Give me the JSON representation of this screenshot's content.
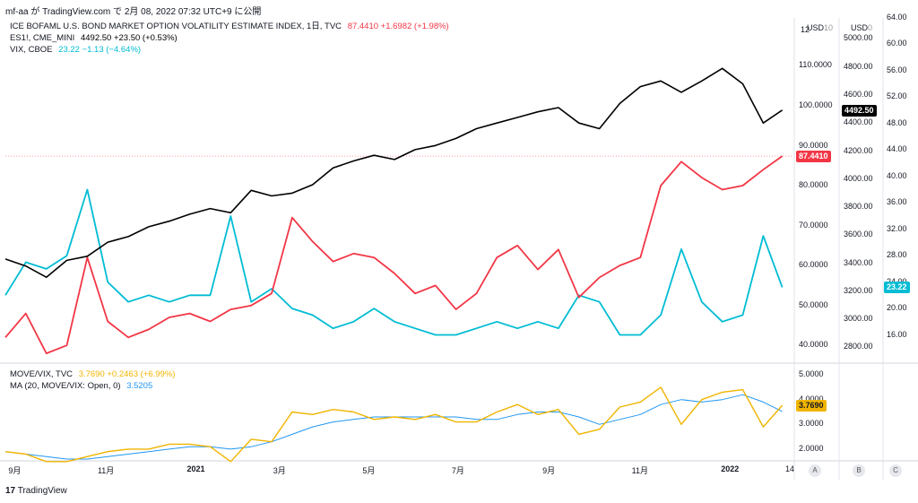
{
  "header": {
    "text": "mf-aa が TradingView.com で 2月 08, 2022 07:32 UTC+9 に公開"
  },
  "logo": {
    "text": "TradingView",
    "icon": "tradingview-logo-icon"
  },
  "main_legend": [
    {
      "name": "ICE BOFAML U.S. BOND MARKET OPTION VOLATILITY ESTIMATE INDEX, 1日, TVC",
      "values": "87.4410 +1.6982 (+1.98%)",
      "color": "#f23645"
    },
    {
      "name": "ES1!, CME_MINI",
      "values": "4492.50 +23.50 (+0.53%)",
      "color": "#000000"
    },
    {
      "name": "VIX, CBOE",
      "values": "23.22 −1.13 (−4.64%)",
      "color": "#00bcd4"
    }
  ],
  "sub_legend": [
    {
      "name": "MOVE/VIX, TVC",
      "values": "3.7690 +0.2463 (+6.99%)",
      "color": "#f0b400"
    },
    {
      "name": "MA (20, MOVE/VIX: Open, 0)",
      "values": "3.5205",
      "color": "#2196f3"
    }
  ],
  "axis_currency": [
    "USD",
    "USD"
  ],
  "axis_partial": [
    "10",
    "0"
  ],
  "x_ticks": [
    "9月",
    "11月",
    "2021",
    "3月",
    "5月",
    "7月",
    "9月",
    "11月",
    "2022",
    "14"
  ],
  "axis_buttons": [
    "A",
    "B",
    "C"
  ],
  "move_axis_ticks": [
    "12",
    "110.0000",
    "100.0000",
    "90.0000",
    "80.0000",
    "70.0000",
    "60.0000",
    "50.0000",
    "40.0000"
  ],
  "es_axis_ticks": [
    "5000.00",
    "4800.00",
    "4600.00",
    "4400.00",
    "4200.00",
    "4000.00",
    "3800.00",
    "3600.00",
    "3400.00",
    "3200.00",
    "3000.00",
    "2800.00"
  ],
  "vix_axis_ticks": [
    "64.00",
    "60.00",
    "56.00",
    "52.00",
    "48.00",
    "44.00",
    "40.00",
    "36.00",
    "32.00",
    "28.00",
    "24.00",
    "20.00",
    "16.00"
  ],
  "ratio_axis_ticks": [
    "5.0000",
    "4.0000",
    "3.0000",
    "2.0000"
  ],
  "last_values": {
    "move": "87.4410",
    "es": "4492.50",
    "vix": "23.22",
    "ratio": "3.7690"
  },
  "colors": {
    "move": "#f23645",
    "es": "#000000",
    "vix": "#00bcd4",
    "ratio": "#f0b400",
    "ma": "#2196f3"
  },
  "chart_data": [
    {
      "type": "line",
      "x": [
        "2020-08-25",
        "2020-09-08",
        "2020-09-22",
        "2020-10-06",
        "2020-10-20",
        "2020-11-03",
        "2020-11-17",
        "2020-12-01",
        "2020-12-15",
        "2020-12-29",
        "2021-01-12",
        "2021-01-26",
        "2021-02-09",
        "2021-02-23",
        "2021-03-09",
        "2021-03-23",
        "2021-04-06",
        "2021-04-20",
        "2021-05-04",
        "2021-05-18",
        "2021-06-01",
        "2021-06-15",
        "2021-06-29",
        "2021-07-13",
        "2021-07-27",
        "2021-08-10",
        "2021-08-24",
        "2021-09-07",
        "2021-09-21",
        "2021-10-05",
        "2021-10-19",
        "2021-11-02",
        "2021-11-16",
        "2021-11-30",
        "2021-12-14",
        "2021-12-28",
        "2022-01-11",
        "2022-01-25",
        "2022-02-07"
      ],
      "series": [
        {
          "name": "ICE BOFAML U.S. BOND MARKET OPTION VOLATILITY ESTIMATE INDEX, 1日, TVC",
          "axis": "move",
          "values": [
            42,
            48,
            38,
            40,
            62,
            46,
            42,
            44,
            47,
            48,
            46,
            49,
            50,
            53,
            72,
            66,
            61,
            63,
            62,
            58,
            53,
            55,
            49,
            53,
            62,
            65,
            59,
            64,
            52,
            57,
            60,
            62,
            80,
            86,
            82,
            79,
            80,
            84,
            87.4
          ]
        },
        {
          "name": "ES1!, CME_MINI",
          "axis": "es",
          "values": [
            3430,
            3380,
            3300,
            3420,
            3450,
            3550,
            3590,
            3660,
            3700,
            3750,
            3790,
            3760,
            3920,
            3880,
            3900,
            3960,
            4080,
            4130,
            4170,
            4140,
            4210,
            4240,
            4290,
            4360,
            4400,
            4440,
            4480,
            4510,
            4400,
            4360,
            4540,
            4660,
            4700,
            4620,
            4700,
            4790,
            4680,
            4400,
            4492.5
          ]
        },
        {
          "name": "VIX, CBOE",
          "axis": "vix",
          "values": [
            22,
            27,
            26,
            28,
            38,
            24,
            21,
            22,
            21,
            22,
            22,
            34,
            21,
            23,
            20,
            19,
            17,
            18,
            20,
            18,
            17,
            16,
            16,
            17,
            18,
            17,
            18,
            17,
            22,
            21,
            16,
            16,
            19,
            29,
            21,
            18,
            19,
            31,
            23.22
          ]
        }
      ],
      "ylim_move": [
        36,
        122
      ],
      "ylim_es": [
        2700,
        5150
      ],
      "ylim_vix": [
        12,
        64
      ]
    },
    {
      "type": "line",
      "x": [
        "2020-08-25",
        "2020-09-08",
        "2020-09-22",
        "2020-10-06",
        "2020-10-20",
        "2020-11-03",
        "2020-11-17",
        "2020-12-01",
        "2020-12-15",
        "2020-12-29",
        "2021-01-12",
        "2021-01-26",
        "2021-02-09",
        "2021-02-23",
        "2021-03-09",
        "2021-03-23",
        "2021-04-06",
        "2021-04-20",
        "2021-05-04",
        "2021-05-18",
        "2021-06-01",
        "2021-06-15",
        "2021-06-29",
        "2021-07-13",
        "2021-07-27",
        "2021-08-10",
        "2021-08-24",
        "2021-09-07",
        "2021-09-21",
        "2021-10-05",
        "2021-10-19",
        "2021-11-02",
        "2021-11-16",
        "2021-11-30",
        "2021-12-14",
        "2021-12-28",
        "2022-01-11",
        "2022-01-25",
        "2022-02-07"
      ],
      "series": [
        {
          "name": "MOVE/VIX, TVC",
          "values": [
            1.9,
            1.8,
            1.5,
            1.5,
            1.7,
            1.9,
            2.0,
            2.0,
            2.2,
            2.2,
            2.1,
            1.5,
            2.4,
            2.3,
            3.5,
            3.4,
            3.6,
            3.5,
            3.2,
            3.3,
            3.2,
            3.4,
            3.1,
            3.1,
            3.5,
            3.8,
            3.4,
            3.6,
            2.6,
            2.8,
            3.7,
            3.9,
            4.5,
            3.0,
            4.0,
            4.3,
            4.4,
            2.9,
            3.769
          ]
        },
        {
          "name": "MA (20, MOVE/VIX: Open, 0)",
          "values": [
            1.9,
            1.8,
            1.7,
            1.6,
            1.6,
            1.7,
            1.8,
            1.9,
            2.0,
            2.1,
            2.1,
            2.0,
            2.1,
            2.3,
            2.6,
            2.9,
            3.1,
            3.2,
            3.3,
            3.3,
            3.3,
            3.3,
            3.3,
            3.2,
            3.2,
            3.4,
            3.5,
            3.5,
            3.3,
            3.0,
            3.2,
            3.4,
            3.8,
            4.0,
            3.9,
            4.0,
            4.2,
            3.9,
            3.52
          ]
        }
      ],
      "ylim": [
        1.6,
        5.4
      ]
    }
  ]
}
